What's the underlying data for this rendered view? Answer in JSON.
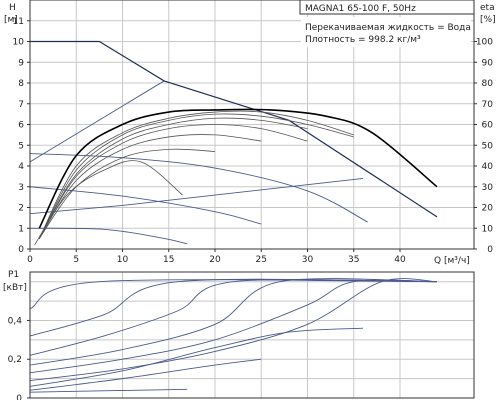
{
  "chart_data": [
    {
      "type": "line",
      "title": "MAGNA1 65-100 F, 50Hz",
      "annotations": [
        "Перекачиваемая жидкость = Вода",
        "Плотность = 998.2 кг/м³"
      ],
      "ylabel": "H",
      "yunit": "[м]",
      "y2label": "eta",
      "y2unit": "[%]",
      "xlabel": "Q",
      "xunit": "[м³/ч]",
      "xlim": [
        0,
        48
      ],
      "ylim": [
        0,
        12
      ],
      "y2lim": [
        0,
        120
      ],
      "xticks": [
        0,
        5,
        10,
        15,
        20,
        25,
        30,
        35,
        40
      ],
      "yticks": [
        0,
        1,
        2,
        3,
        4,
        5,
        6,
        7,
        8,
        9,
        10,
        11
      ],
      "y2ticks": [
        0,
        10,
        20,
        30,
        40,
        50,
        60,
        70,
        80,
        90,
        100
      ],
      "grid": true,
      "head_series": [
        {
          "points": [
            [
              0,
              10.0
            ],
            [
              7.5,
              10.0
            ],
            [
              14.5,
              8.1
            ],
            [
              28,
              6.2
            ],
            [
              44,
              1.55
            ]
          ]
        },
        {
          "points": [
            [
              0,
              4.6
            ],
            [
              10,
              4.4
            ],
            [
              20,
              3.9
            ],
            [
              30,
              2.8
            ],
            [
              36.5,
              1.3
            ]
          ]
        },
        {
          "points": [
            [
              0,
              3.0
            ],
            [
              10,
              2.55
            ],
            [
              20,
              1.8
            ],
            [
              25,
              1.2
            ]
          ]
        },
        {
          "points": [
            [
              0,
              1.0
            ],
            [
              8,
              0.95
            ],
            [
              14,
              0.55
            ],
            [
              17,
              0.25
            ]
          ]
        }
      ],
      "efficiency_series": [
        {
          "points": [
            [
              1,
              5
            ],
            [
              5,
              40
            ],
            [
              10,
              56
            ],
            [
              15,
              63
            ],
            [
              20,
              66
            ],
            [
              25,
              66
            ],
            [
              30,
              62
            ],
            [
              35,
              55
            ]
          ]
        },
        {
          "points": [
            [
              1,
              5
            ],
            [
              5,
              38
            ],
            [
              10,
              55
            ],
            [
              15,
              62
            ],
            [
              20,
              65
            ],
            [
              25,
              64
            ],
            [
              30,
              60
            ],
            [
              35,
              54
            ]
          ]
        },
        {
          "points": [
            [
              1,
              5
            ],
            [
              5,
              36
            ],
            [
              10,
              53
            ],
            [
              15,
              60
            ],
            [
              20,
              63
            ],
            [
              25,
              62
            ],
            [
              30,
              58
            ]
          ]
        },
        {
          "points": [
            [
              1,
              5
            ],
            [
              5,
              35
            ],
            [
              10,
              51
            ],
            [
              15,
              58
            ],
            [
              20,
              60
            ],
            [
              25,
              58
            ],
            [
              30,
              52
            ]
          ]
        },
        {
          "points": [
            [
              1,
              5
            ],
            [
              5,
              33
            ],
            [
              10,
              48
            ],
            [
              15,
              54
            ],
            [
              20,
              55
            ],
            [
              25,
              52
            ]
          ]
        },
        {
          "points": [
            [
              1,
              5
            ],
            [
              5,
              30
            ],
            [
              10,
              44
            ],
            [
              15,
              48
            ],
            [
              20,
              47
            ]
          ]
        },
        {
          "points": [
            [
              0.5,
              2
            ],
            [
              4,
              26
            ],
            [
              8,
              38
            ],
            [
              12,
              42
            ],
            [
              16.5,
              26
            ]
          ]
        },
        {
          "points": [
            [
              1,
              10
            ],
            [
              5,
              45
            ],
            [
              10,
              60
            ],
            [
              15,
              66
            ],
            [
              20,
              67
            ],
            [
              26,
              67
            ],
            [
              32,
              64
            ],
            [
              37,
              56
            ],
            [
              44,
              30
            ]
          ]
        }
      ],
      "system_lines": [
        {
          "points": [
            [
              0,
              1.7
            ],
            [
              10,
              2.1
            ],
            [
              20,
              2.6
            ],
            [
              30,
              3.1
            ],
            [
              36,
              3.4
            ]
          ]
        },
        {
          "points": [
            [
              0,
              4.2
            ],
            [
              14.5,
              8.1
            ]
          ]
        }
      ]
    },
    {
      "type": "line",
      "ylabel": "P1",
      "yunit": "[кВт]",
      "xlim": [
        0,
        48
      ],
      "ylim": [
        0,
        0.65
      ],
      "yticks": [
        0,
        0.2,
        0.4
      ],
      "ytick_labels": [
        "0",
        "0,2",
        "0,4"
      ],
      "grid": true,
      "series": [
        {
          "points": [
            [
              0,
              0.46
            ],
            [
              7.5,
              0.6
            ],
            [
              44,
              0.6
            ]
          ]
        },
        {
          "points": [
            [
              0,
              0.32
            ],
            [
              8,
              0.43
            ],
            [
              16,
              0.6
            ],
            [
              44,
              0.6
            ]
          ]
        },
        {
          "points": [
            [
              0,
              0.22
            ],
            [
              8,
              0.32
            ],
            [
              16,
              0.45
            ],
            [
              22,
              0.6
            ],
            [
              44,
              0.6
            ]
          ]
        },
        {
          "points": [
            [
              0,
              0.17
            ],
            [
              10,
              0.25
            ],
            [
              20,
              0.38
            ],
            [
              27,
              0.6
            ],
            [
              44,
              0.6
            ]
          ]
        },
        {
          "points": [
            [
              0,
              0.13
            ],
            [
              10,
              0.2
            ],
            [
              20,
              0.3
            ],
            [
              30,
              0.48
            ],
            [
              35,
              0.6
            ],
            [
              44,
              0.6
            ]
          ]
        },
        {
          "points": [
            [
              0,
              0.09
            ],
            [
              10,
              0.15
            ],
            [
              20,
              0.24
            ],
            [
              30,
              0.38
            ],
            [
              38,
              0.6
            ],
            [
              44,
              0.6
            ]
          ]
        },
        {
          "points": [
            [
              0,
              0.06
            ],
            [
              10,
              0.14
            ],
            [
              20,
              0.26
            ],
            [
              28,
              0.34
            ],
            [
              36,
              0.36
            ]
          ]
        },
        {
          "points": [
            [
              0,
              0.04
            ],
            [
              10,
              0.1
            ],
            [
              20,
              0.17
            ],
            [
              25,
              0.2
            ]
          ]
        },
        {
          "points": [
            [
              0,
              0.03
            ],
            [
              17,
              0.045
            ]
          ]
        }
      ]
    }
  ]
}
